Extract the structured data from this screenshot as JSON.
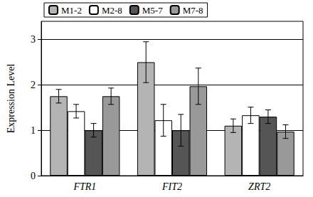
{
  "chart_data": {
    "type": "bar",
    "y_label": "Expression Level",
    "categories": [
      "FTR1",
      "FIT2",
      "ZRT2"
    ],
    "series": [
      {
        "name": "M1-2",
        "color": "#b4b4b4",
        "values": [
          1.75,
          2.5,
          1.1
        ],
        "errors": [
          0.15,
          0.45,
          0.15
        ]
      },
      {
        "name": "M2-8",
        "color": "#ffffff",
        "values": [
          1.42,
          1.22,
          1.33
        ],
        "errors": [
          0.15,
          0.35,
          0.18
        ]
      },
      {
        "name": "M5-7",
        "color": "#555555",
        "values": [
          1.0,
          1.0,
          1.3
        ],
        "errors": [
          0.15,
          0.35,
          0.15
        ]
      },
      {
        "name": "M7-8",
        "color": "#999999",
        "values": [
          1.75,
          1.97,
          0.97
        ],
        "errors": [
          0.18,
          0.4,
          0.15
        ]
      }
    ],
    "ylim": [
      0,
      3.4
    ],
    "yticks": [
      0,
      1,
      2,
      3
    ],
    "grid": true,
    "legend": "top"
  }
}
